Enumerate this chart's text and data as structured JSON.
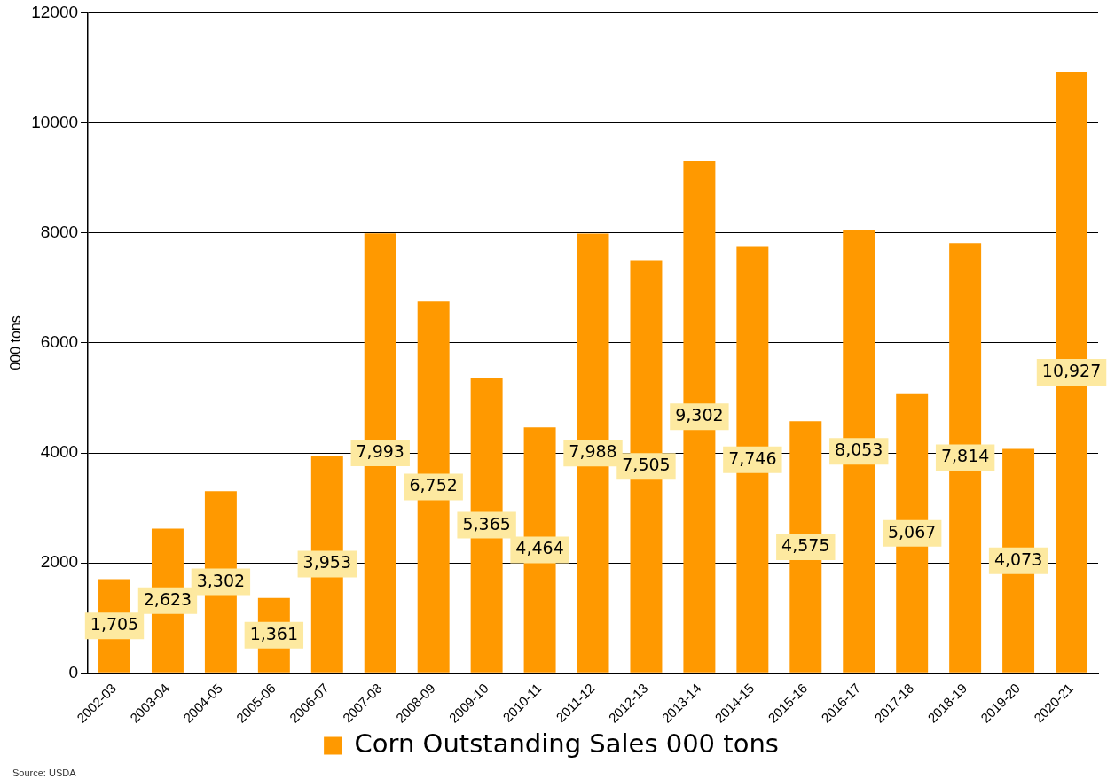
{
  "chart_data": {
    "type": "bar",
    "ylabel": "000 tons",
    "categories": [
      "2002-03",
      "2003-04",
      "2004-05",
      "2005-06",
      "2006-07",
      "2007-08",
      "2008-09",
      "2009-10",
      "2010-11",
      "2011-12",
      "2012-13",
      "2013-14",
      "2014-15",
      "2015-16",
      "2016-17",
      "2017-18",
      "2018-19",
      "2019-20",
      "2020-21"
    ],
    "series": [
      {
        "name": "Corn Outstanding Sales 000 tons",
        "color": "#ff9900",
        "values": [
          1705,
          2623,
          3302,
          1361,
          3953,
          7993,
          6752,
          5365,
          4464,
          7988,
          7505,
          9302,
          7746,
          4575,
          8053,
          5067,
          7814,
          4073,
          10927
        ],
        "value_labels": [
          "1,705",
          "2,623",
          "3,302",
          "1,361",
          "3,953",
          "7,993",
          "6,752",
          "5,365",
          "4,464",
          "7,988",
          "7,505",
          "9,302",
          "7,746",
          "4,575",
          "8,053",
          "5,067",
          "7,814",
          "4,073",
          "10,927"
        ]
      }
    ],
    "ylim": [
      0,
      12000
    ],
    "yticks": [
      0,
      2000,
      4000,
      6000,
      8000,
      10000,
      12000
    ],
    "grid": "y",
    "legend": "bottom",
    "annotations": [
      "Source: USDA"
    ]
  }
}
